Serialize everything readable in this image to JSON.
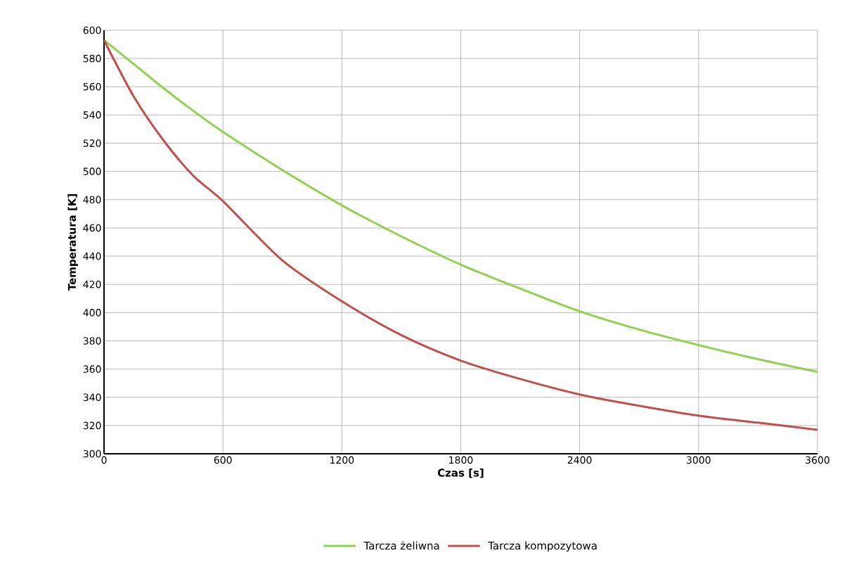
{
  "chart_data": {
    "type": "line",
    "xlabel": "Czas [s]",
    "ylabel": "Temperatura [K]",
    "xlim": [
      0,
      3600
    ],
    "xticks": [
      0,
      600,
      1200,
      1800,
      2400,
      3000,
      3600
    ],
    "ylim": [
      300,
      600
    ],
    "yticks": [
      300,
      320,
      340,
      360,
      380,
      400,
      420,
      440,
      460,
      480,
      500,
      520,
      540,
      560,
      580,
      600
    ],
    "grid": true,
    "legend": "bottom",
    "marker": "none",
    "line_style": "solid",
    "x": [
      0,
      150,
      300,
      450,
      600,
      900,
      1200,
      1500,
      1800,
      2100,
      2400,
      2700,
      3000,
      3300,
      3600
    ],
    "series": [
      {
        "name": "Tarcza żeliwna",
        "color": "#92d050",
        "values": [
          593,
          576,
          559,
          543,
          528,
          501,
          476,
          454,
          434,
          417,
          401,
          388,
          377,
          367,
          358
        ]
      },
      {
        "name": "Tarcza kompozytowa",
        "color": "#c0504d",
        "values": [
          593,
          553,
          522,
          497,
          479,
          437,
          408,
          384,
          366,
          353,
          342,
          334,
          327,
          322,
          317
        ]
      }
    ]
  }
}
